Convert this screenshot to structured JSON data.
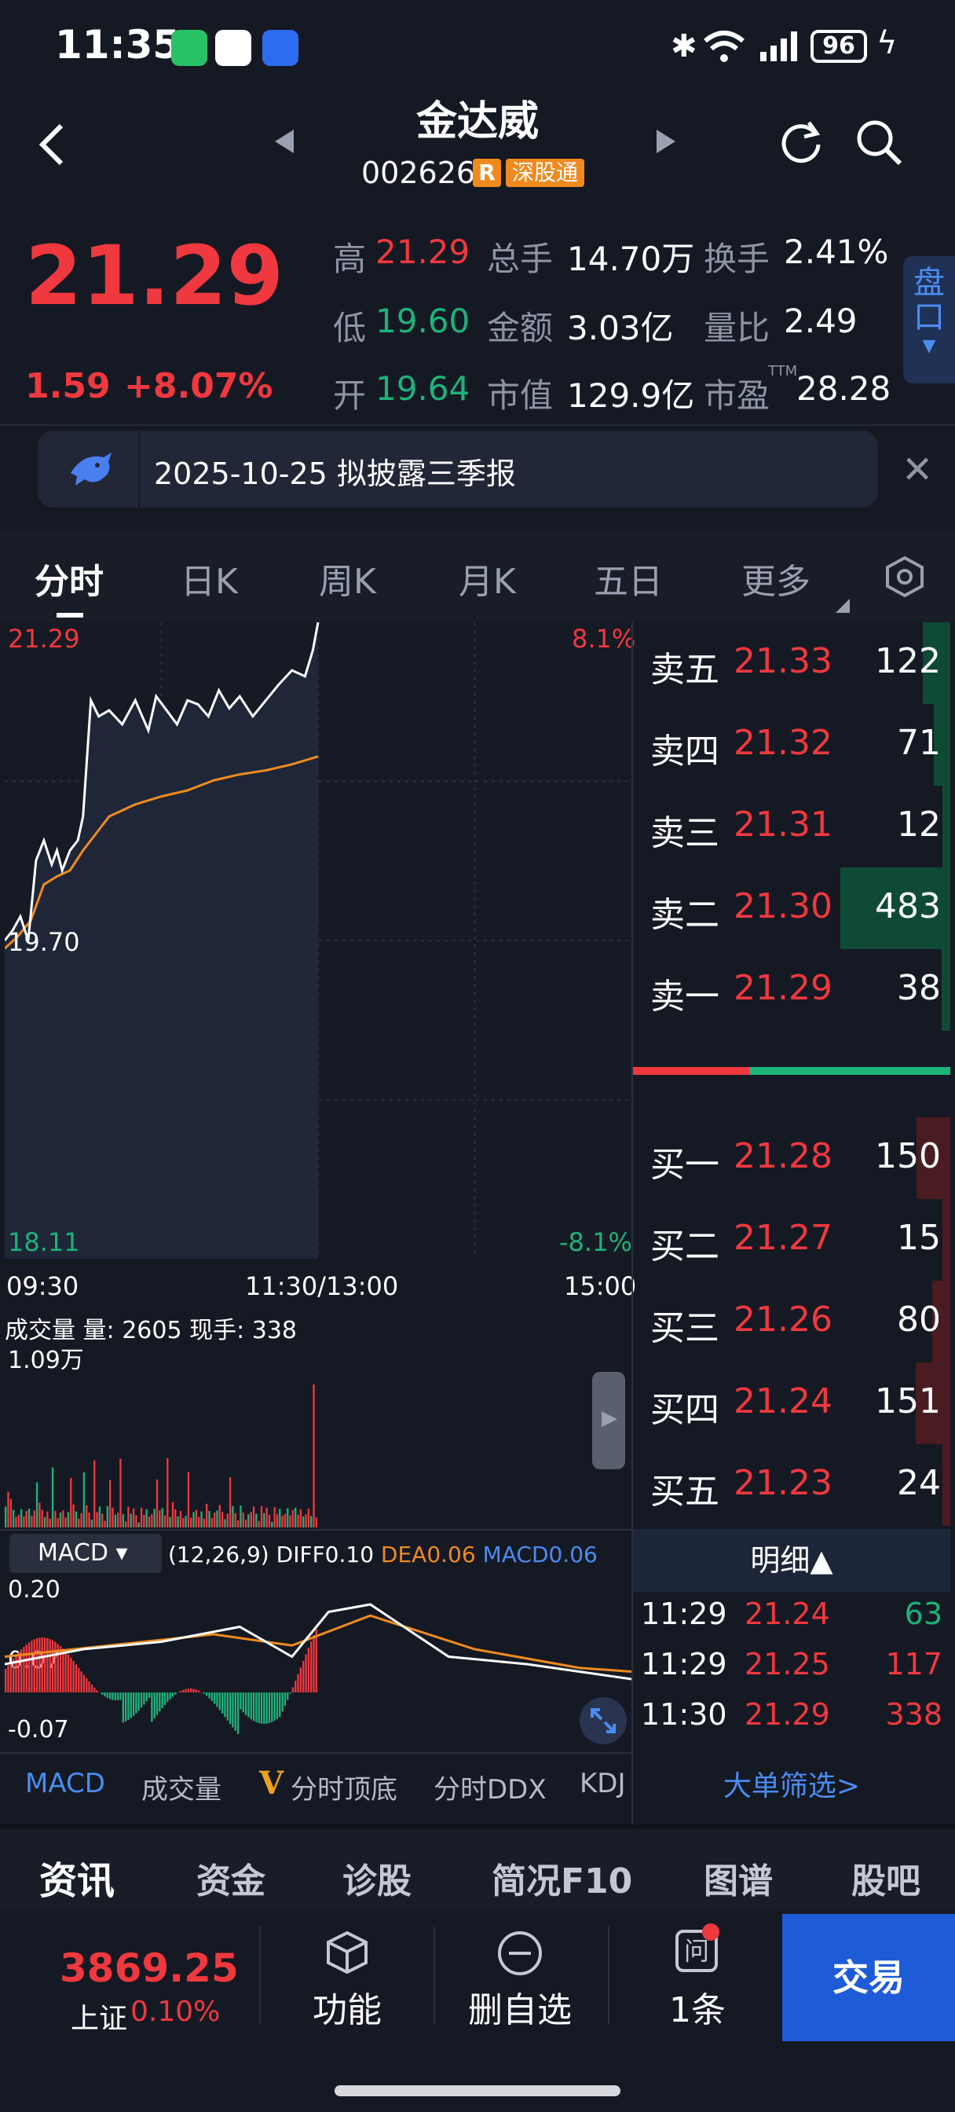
{
  "status_bar": {
    "time": "11:35",
    "battery": "96",
    "icons": [
      "wechat-icon",
      "app-icon",
      "shield-app-icon",
      "bluetooth-icon",
      "wifi-icon",
      "signal-icon",
      "charging-icon"
    ]
  },
  "header": {
    "name": "金达威",
    "code": "002626",
    "badge_r": "R",
    "badge_market": "深股通"
  },
  "quote": {
    "price": "21.29",
    "change": "1.59",
    "change_pct": "+8.07%",
    "high_label": "高",
    "high": "21.29",
    "low_label": "低",
    "low": "19.60",
    "open_label": "开",
    "open": "19.64",
    "vol_label": "总手",
    "vol": "14.70万",
    "amount_label": "金额",
    "amount": "3.03亿",
    "mcap_label": "市值",
    "mcap": "129.9亿",
    "turnover_label": "换手",
    "turnover": "2.41%",
    "ratio_label": "量比",
    "ratio": "2.49",
    "pe_label": "市盈",
    "pe_sup": "TTM",
    "pe": "28.28",
    "pankou_label": [
      "盘",
      "口"
    ]
  },
  "notice": {
    "text": "2025-10-25 拟披露三季报"
  },
  "chart_tabs": [
    "分时",
    "日K",
    "周K",
    "月K",
    "五日",
    "更多"
  ],
  "chart_data": {
    "type": "line",
    "price_axis": {
      "top": "21.29",
      "mid": "19.70",
      "bottom": "18.11"
    },
    "pct_axis": {
      "top": "8.1%",
      "bottom": "-8.1%"
    },
    "time_axis": [
      "09:30",
      "11:30/13:00",
      "15:00"
    ],
    "ylim": [
      18.11,
      21.29
    ],
    "series": [
      {
        "name": "price",
        "color": "#ffffff",
        "x": [
          0,
          3,
          6,
          9,
          12,
          15,
          18,
          20,
          22,
          25,
          28,
          30,
          33,
          36,
          40,
          45,
          50,
          55,
          58,
          62,
          66,
          70,
          74,
          78,
          82,
          86,
          90,
          95,
          100,
          105,
          110,
          115,
          118,
          120
        ],
        "values": [
          19.7,
          19.75,
          19.82,
          19.7,
          20.1,
          20.2,
          20.08,
          20.15,
          20.05,
          20.15,
          20.2,
          20.32,
          20.9,
          20.82,
          20.85,
          20.78,
          20.9,
          20.75,
          20.92,
          20.85,
          20.78,
          20.9,
          20.88,
          20.82,
          20.95,
          20.86,
          20.92,
          20.82,
          20.9,
          20.98,
          21.05,
          21.02,
          21.15,
          21.29
        ]
      },
      {
        "name": "avg",
        "color": "#f08a1f",
        "x": [
          0,
          5,
          10,
          15,
          20,
          25,
          30,
          40,
          50,
          60,
          70,
          80,
          90,
          100,
          110,
          120
        ],
        "values": [
          19.66,
          19.72,
          19.8,
          19.98,
          20.02,
          20.05,
          20.15,
          20.32,
          20.38,
          20.42,
          20.45,
          20.5,
          20.53,
          20.55,
          20.58,
          20.62
        ]
      }
    ],
    "volume": {
      "title": "成交量",
      "label": "量: 2605",
      "current": "现手: 338",
      "max": "1.09万"
    },
    "macd": {
      "name": "MACD",
      "params": "(12,26,9)",
      "diff": "DIFF0.10",
      "dea": "DEA0.06",
      "macd": "MACD0.06",
      "top": "0.20",
      "mid": "0.07",
      "bottom": "-0.07"
    }
  },
  "order_book": {
    "asks": [
      {
        "label": "卖五",
        "price": "21.33",
        "vol": "122"
      },
      {
        "label": "卖四",
        "price": "21.32",
        "vol": "71"
      },
      {
        "label": "卖三",
        "price": "21.31",
        "vol": "12"
      },
      {
        "label": "卖二",
        "price": "21.30",
        "vol": "483"
      },
      {
        "label": "卖一",
        "price": "21.29",
        "vol": "38"
      }
    ],
    "bids": [
      {
        "label": "买一",
        "price": "21.28",
        "vol": "150"
      },
      {
        "label": "买二",
        "price": "21.27",
        "vol": "15"
      },
      {
        "label": "买三",
        "price": "21.26",
        "vol": "80"
      },
      {
        "label": "买四",
        "price": "21.24",
        "vol": "151"
      },
      {
        "label": "买五",
        "price": "21.23",
        "vol": "24"
      }
    ]
  },
  "detail": {
    "title": "明细▲",
    "rows": [
      {
        "time": "11:29",
        "price": "21.24",
        "vol": "63",
        "side": "sell"
      },
      {
        "time": "11:29",
        "price": "21.25",
        "vol": "117",
        "side": "buy"
      },
      {
        "time": "11:30",
        "price": "21.29",
        "vol": "338",
        "side": "buy"
      }
    ],
    "big_order": "大单筛选>"
  },
  "indicator_tabs": [
    "MACD",
    "成交量",
    "分时顶底",
    "分时DDX",
    "KDJ"
  ],
  "bottom_tabs": [
    "资讯",
    "资金",
    "诊股",
    "简况F10",
    "图谱",
    "股吧"
  ],
  "dock": {
    "index_value": "3869.25",
    "index_name": "上证",
    "index_pct": "0.10%",
    "func": "功能",
    "remove": "删自选",
    "msg_count": "1条",
    "msg_icon_char": "问",
    "trade": "交易"
  }
}
